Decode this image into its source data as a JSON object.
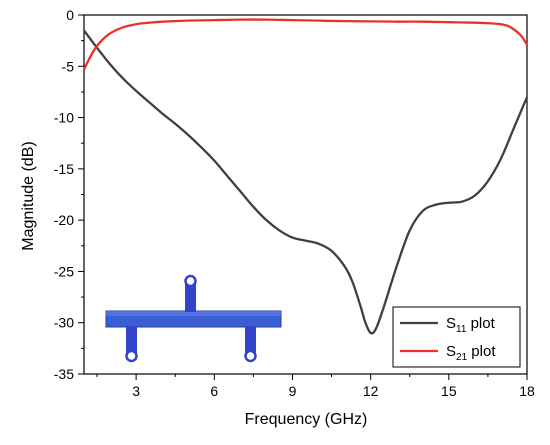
{
  "chart_data": {
    "type": "line",
    "title": "",
    "xlabel": "Frequency (GHz)",
    "ylabel": "Magnitude (dB)",
    "xlim": [
      1,
      18
    ],
    "ylim": [
      -35,
      0
    ],
    "xticks": [
      3,
      6,
      9,
      12,
      15,
      18
    ],
    "yticks": [
      0,
      -5,
      -10,
      -15,
      -20,
      -25,
      -30,
      -35
    ],
    "grid": false,
    "legend_position": "bottom-right",
    "series": [
      {
        "name": "S11 plot",
        "label_main": "S",
        "label_sub": "11",
        "label_suffix": " plot",
        "color": "#404040",
        "x": [
          1,
          1.5,
          2,
          2.5,
          3,
          3.5,
          4,
          4.5,
          5,
          5.5,
          6,
          6.5,
          7,
          7.5,
          8,
          8.5,
          9,
          9.5,
          10,
          10.5,
          11,
          11.3,
          11.6,
          11.8,
          12,
          12.2,
          12.5,
          13,
          13.5,
          14,
          14.5,
          15,
          15.5,
          16,
          16.5,
          17,
          17.5,
          18
        ],
        "y": [
          -1.5,
          -3.2,
          -4.8,
          -6.2,
          -7.4,
          -8.5,
          -9.6,
          -10.6,
          -11.7,
          -12.9,
          -14.2,
          -15.7,
          -17.2,
          -18.7,
          -20.0,
          -21.0,
          -21.7,
          -22.0,
          -22.3,
          -23.0,
          -24.5,
          -26.0,
          -28.3,
          -30.0,
          -31.0,
          -30.6,
          -28.5,
          -24.5,
          -21.0,
          -19.1,
          -18.5,
          -18.3,
          -18.2,
          -17.6,
          -16.2,
          -14.0,
          -11.0,
          -8.0
        ]
      },
      {
        "name": "S21 plot",
        "label_main": "S",
        "label_sub": "21",
        "label_suffix": " plot",
        "color": "#e8312b",
        "x": [
          1,
          1.3,
          1.6,
          2,
          2.5,
          3,
          3.5,
          4,
          5,
          6,
          7,
          8,
          9,
          10,
          11,
          12,
          13,
          14,
          15,
          16,
          16.5,
          17,
          17.3,
          17.6,
          17.8,
          18
        ],
        "y": [
          -5.3,
          -3.8,
          -2.7,
          -1.8,
          -1.2,
          -0.9,
          -0.75,
          -0.65,
          -0.55,
          -0.5,
          -0.45,
          -0.45,
          -0.5,
          -0.55,
          -0.6,
          -0.62,
          -0.65,
          -0.65,
          -0.7,
          -0.75,
          -0.8,
          -0.9,
          -1.1,
          -1.6,
          -2.1,
          -2.9
        ]
      }
    ]
  }
}
